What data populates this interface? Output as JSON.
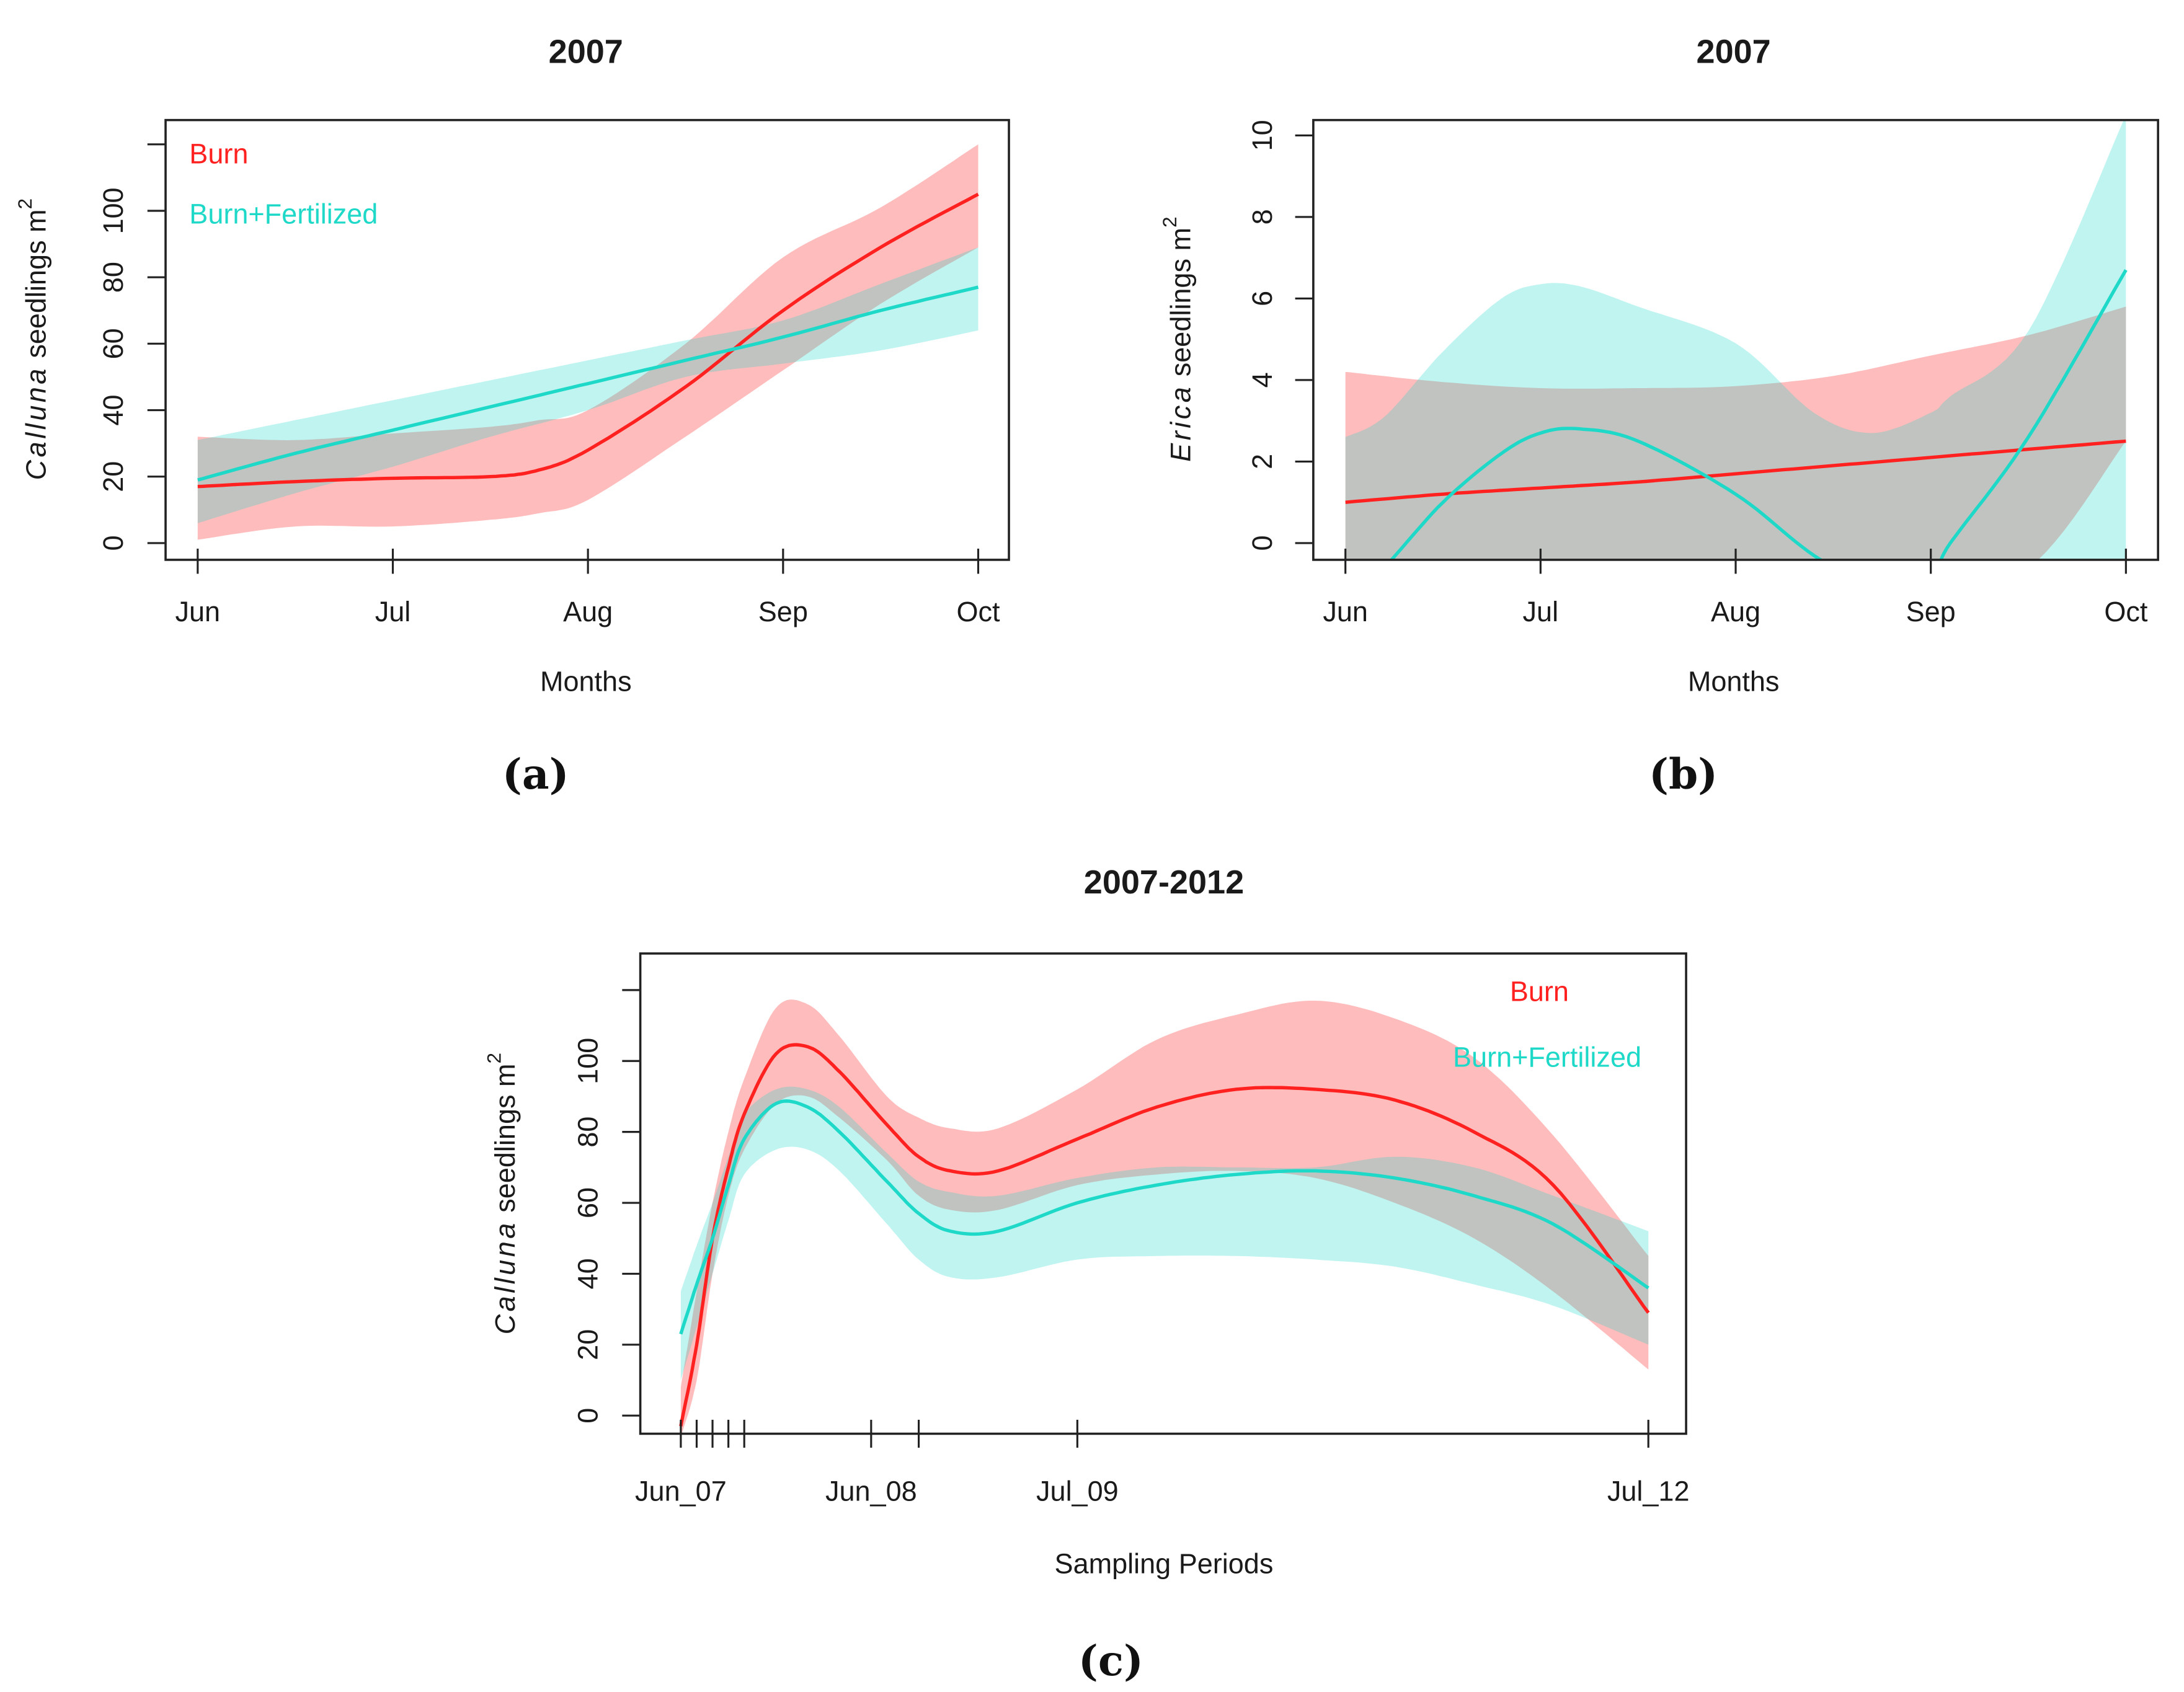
{
  "chart_data": [
    {
      "type": "line",
      "panel_label": "(a)",
      "title": "2007",
      "xlabel": "Months",
      "ylabel": {
        "genus": "Calluna",
        "rest": " seedlings m",
        "sup": "2"
      },
      "xlim": [
        0,
        4
      ],
      "ylim": [
        -5,
        130
      ],
      "x_ticks": [
        {
          "value": 0,
          "label": "Jun"
        },
        {
          "value": 1,
          "label": "Jul"
        },
        {
          "value": 2,
          "label": "Aug"
        },
        {
          "value": 3,
          "label": "Sep"
        },
        {
          "value": 4,
          "label": "Oct"
        }
      ],
      "y_ticks": [
        {
          "value": 0,
          "label": "0"
        },
        {
          "value": 20,
          "label": "20"
        },
        {
          "value": 40,
          "label": "40"
        },
        {
          "value": 60,
          "label": "60"
        },
        {
          "value": 80,
          "label": "80"
        },
        {
          "value": 100,
          "label": "100"
        },
        {
          "value": 120,
          "label": ""
        }
      ],
      "legend": {
        "placement": "top-left"
      },
      "series": [
        {
          "name": "Burn",
          "color": "#ff2020",
          "x": [
            0,
            0.5,
            1,
            1.5,
            1.75,
            2,
            2.5,
            3,
            3.5,
            4
          ],
          "mean": [
            17,
            18.5,
            19.5,
            20,
            22,
            28,
            47,
            70,
            89,
            105
          ],
          "upper": [
            32,
            31,
            33,
            35,
            37,
            40,
            60,
            86,
            101,
            120
          ],
          "lower": [
            1,
            5,
            5,
            7,
            9,
            13,
            32,
            52,
            72,
            89
          ]
        },
        {
          "name": "Burn+Fertilized",
          "color": "#1ed8c8",
          "x": [
            0,
            0.5,
            1,
            1.5,
            2,
            2.5,
            3,
            3.5,
            4
          ],
          "mean": [
            19,
            27,
            34,
            41,
            48,
            55,
            62,
            70,
            77
          ],
          "upper": [
            31,
            37,
            43,
            49,
            55,
            61,
            67,
            78,
            89
          ],
          "lower": [
            6,
            15,
            23,
            32,
            40,
            50,
            54,
            58,
            64
          ]
        }
      ]
    },
    {
      "type": "line",
      "panel_label": "(b)",
      "title": "2007",
      "xlabel": "Months",
      "ylabel": {
        "genus": "Erica",
        "rest": " seedlings m",
        "sup": "2"
      },
      "xlim": [
        0,
        4
      ],
      "ylim": [
        -0.41,
        10.4
      ],
      "x_ticks": [
        {
          "value": 0,
          "label": "Jun"
        },
        {
          "value": 1,
          "label": "Jul"
        },
        {
          "value": 2,
          "label": "Aug"
        },
        {
          "value": 3,
          "label": "Sep"
        },
        {
          "value": 4,
          "label": "Oct"
        }
      ],
      "y_ticks": [
        {
          "value": 0,
          "label": "0"
        },
        {
          "value": 2,
          "label": "2"
        },
        {
          "value": 4,
          "label": "4"
        },
        {
          "value": 6,
          "label": "6"
        },
        {
          "value": 8,
          "label": "8"
        },
        {
          "value": 10,
          "label": "10"
        }
      ],
      "series": [
        {
          "color": "#ff2020",
          "x": [
            0,
            0.5,
            1,
            1.5,
            2,
            2.5,
            3,
            3.5,
            4
          ],
          "mean": [
            1.0,
            1.2,
            1.35,
            1.5,
            1.7,
            1.9,
            2.1,
            2.3,
            2.5
          ],
          "upper": [
            4.2,
            3.95,
            3.8,
            3.8,
            3.85,
            4.1,
            4.6,
            5.1,
            5.8
          ],
          "lower": [
            -0.6,
            -0.6,
            -0.6,
            -0.6,
            -0.6,
            -0.6,
            -0.6,
            -0.6,
            2.5
          ]
        },
        {
          "color": "#1ed8c8",
          "x": [
            0,
            0.2,
            0.5,
            0.8,
            1,
            1.2,
            1.5,
            2,
            2.4,
            2.7,
            3,
            3.1,
            3.5,
            4
          ],
          "mean": [
            -1.5,
            -0.6,
            1.0,
            2.2,
            2.7,
            2.8,
            2.5,
            1.2,
            -0.3,
            -1.0,
            -0.8,
            0.0,
            2.6,
            6.7
          ],
          "upper": [
            2.6,
            3.1,
            4.7,
            6.0,
            6.35,
            6.3,
            5.8,
            4.9,
            3.2,
            2.7,
            3.2,
            3.6,
            5.2,
            10.5
          ],
          "lower": [
            -0.6,
            -0.6,
            -0.6,
            -0.6,
            -0.6,
            -0.6,
            -0.6,
            -0.6,
            -0.6,
            -0.6,
            -0.6,
            -0.6,
            -0.6,
            -0.6
          ]
        }
      ]
    },
    {
      "type": "line",
      "panel_label": "(c)",
      "title": "2007-2012",
      "xlabel": "Sampling Periods",
      "ylabel": {
        "genus": "Calluna",
        "rest": " seedlings m",
        "sup": "2"
      },
      "xlim": [
        0,
        61
      ],
      "ylim": [
        -5,
        130
      ],
      "x_ticks": [
        {
          "value": 0,
          "label": "Jun_07"
        },
        {
          "value": 1,
          "label": ""
        },
        {
          "value": 2,
          "label": ""
        },
        {
          "value": 3,
          "label": ""
        },
        {
          "value": 4,
          "label": ""
        },
        {
          "value": 12,
          "label": "Jun_08"
        },
        {
          "value": 15,
          "label": ""
        },
        {
          "value": 25,
          "label": "Jul_09"
        },
        {
          "value": 61,
          "label": "Jul_12"
        }
      ],
      "y_ticks": [
        {
          "value": 0,
          "label": "0"
        },
        {
          "value": 20,
          "label": "20"
        },
        {
          "value": 40,
          "label": "40"
        },
        {
          "value": 60,
          "label": "60"
        },
        {
          "value": 80,
          "label": "80"
        },
        {
          "value": 100,
          "label": "100"
        },
        {
          "value": 120,
          "label": ""
        }
      ],
      "legend": {
        "placement": "top-right"
      },
      "series": [
        {
          "name": "Burn",
          "color": "#ff2020",
          "x": [
            0,
            1,
            2,
            3,
            4,
            6,
            8,
            10,
            13,
            15,
            17,
            20,
            25,
            30,
            35,
            40,
            45,
            50,
            55,
            61
          ],
          "mean": [
            -3,
            20,
            50,
            70,
            85,
            102,
            104,
            97,
            82,
            73,
            69,
            69,
            78,
            87,
            92,
            92,
            89,
            80,
            65,
            29
          ],
          "upper": [
            8,
            35,
            60,
            80,
            95,
            115,
            116,
            107,
            90,
            84,
            81,
            81,
            92,
            106,
            113,
            117,
            112,
            101,
            79,
            45
          ],
          "lower": [
            -6,
            10,
            40,
            62,
            75,
            88,
            90,
            84,
            72,
            62,
            58,
            58,
            65,
            68,
            69,
            67,
            60,
            50,
            35,
            13
          ]
        },
        {
          "name": "Burn+Fertilized",
          "color": "#1ed8c8",
          "x": [
            0,
            1,
            2,
            3,
            4,
            6,
            8,
            10,
            13,
            15,
            17,
            20,
            25,
            30,
            35,
            40,
            45,
            50,
            55,
            61
          ],
          "mean": [
            23,
            37,
            50,
            65,
            78,
            88,
            87,
            80,
            66,
            57,
            52,
            52,
            60,
            65,
            68,
            69,
            67,
            62,
            54,
            36
          ],
          "upper": [
            35,
            48,
            60,
            73,
            85,
            92,
            92,
            87,
            74,
            66,
            63,
            62,
            67,
            70,
            70,
            70,
            73,
            70,
            62,
            52
          ],
          "lower": [
            10,
            25,
            40,
            55,
            68,
            75,
            75,
            69,
            54,
            44,
            39,
            39,
            44,
            45,
            45,
            44,
            42,
            37,
            31,
            20
          ]
        }
      ]
    }
  ]
}
